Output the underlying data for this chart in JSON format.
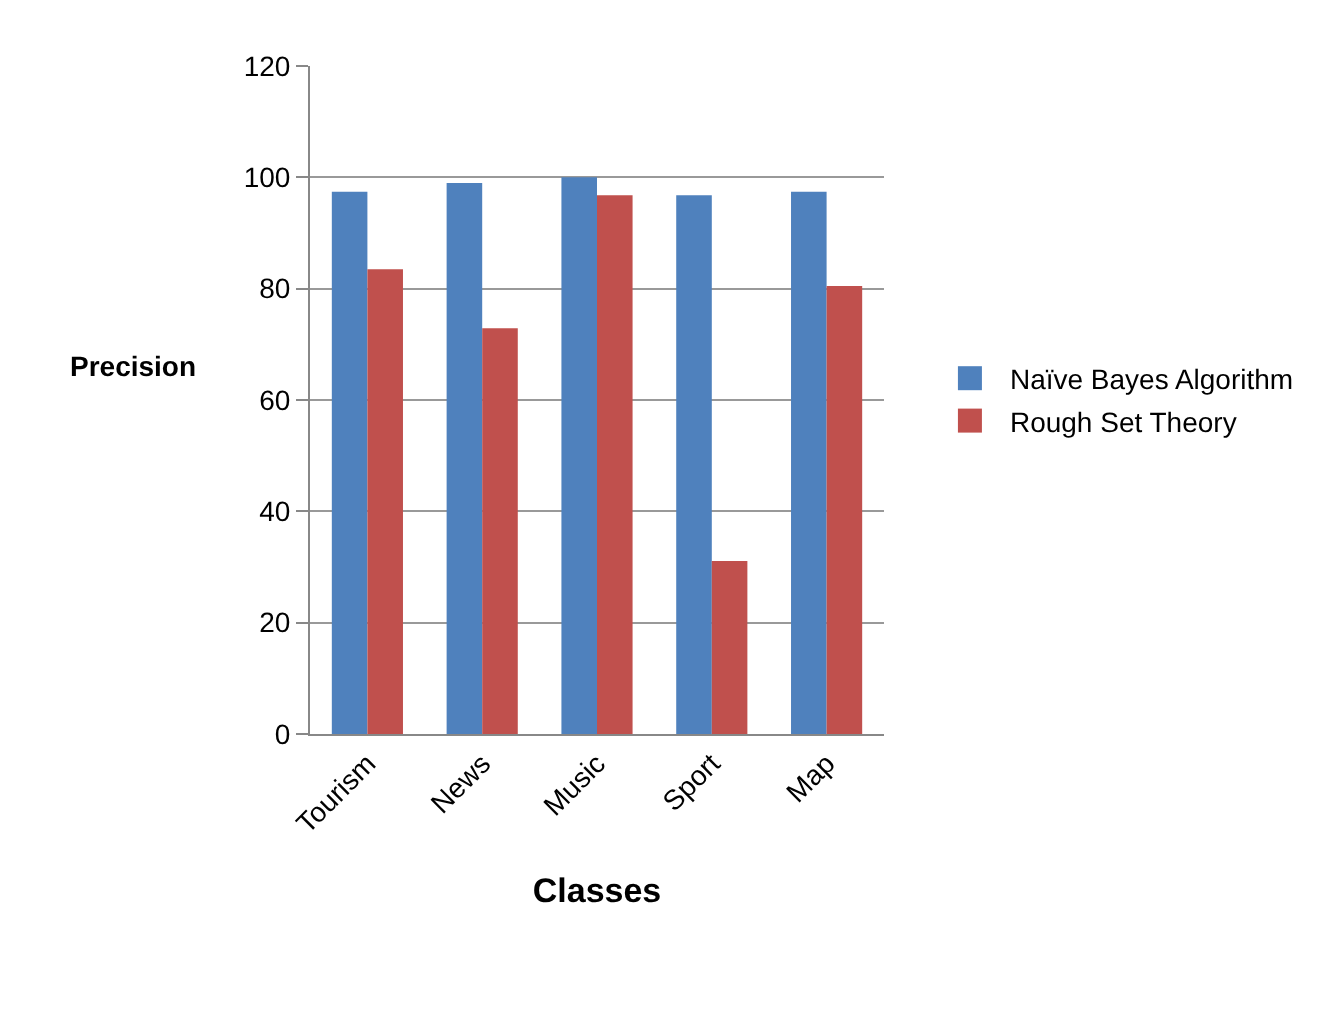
{
  "chart_data": {
    "type": "bar",
    "xlabel": "Classes",
    "ylabel": "Precision",
    "categories": [
      "Tourism",
      "News",
      "Music",
      "Sport",
      "Map"
    ],
    "series": [
      {
        "name": "Naïve Bayes Algorithm",
        "color": "#4f81bd",
        "values": [
          97.4,
          99.0,
          100,
          96.8,
          97.4
        ]
      },
      {
        "name": "Rough Set Theory",
        "color": "#c0504d",
        "values": [
          83.5,
          72.9,
          96.8,
          31.1,
          80.5
        ]
      }
    ],
    "ylim": [
      0,
      120
    ],
    "yticks": [
      0,
      20,
      40,
      60,
      80,
      100,
      120
    ],
    "grid": "y",
    "legend": "right"
  }
}
